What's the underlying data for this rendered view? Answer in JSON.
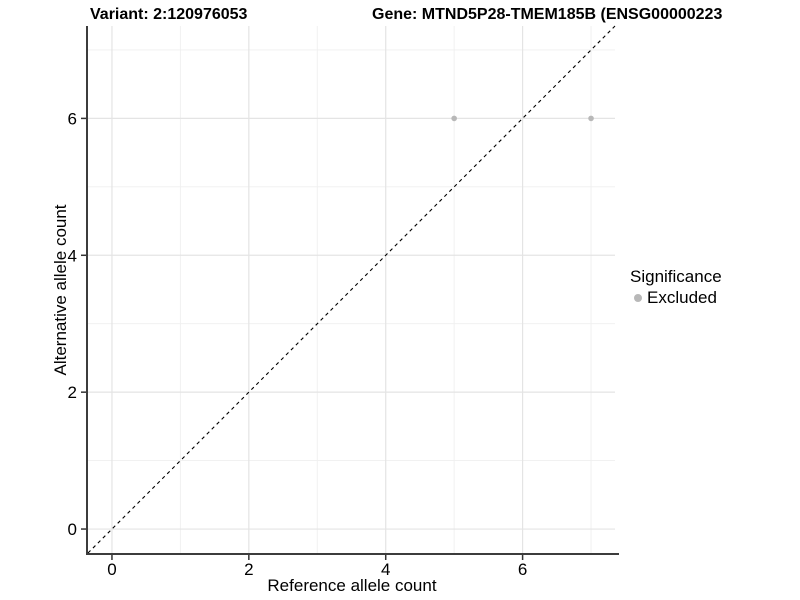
{
  "titles": {
    "variant": "Variant: 2:120976053",
    "gene": "Gene: MTND5P28-TMEM185B (ENSG00000223"
  },
  "chart_data": {
    "type": "scatter",
    "title_left": "Variant: 2:120976053",
    "title_right": "Gene: MTND5P28-TMEM185B (ENSG00000223",
    "xlabel": "Reference allele count",
    "ylabel": "Alternative allele count",
    "xlim": [
      -0.35,
      7.35
    ],
    "ylim": [
      -0.35,
      7.35
    ],
    "x_ticks": [
      0,
      2,
      4,
      6
    ],
    "y_ticks": [
      0,
      2,
      4,
      6
    ],
    "x_minor_ticks": [
      1,
      3,
      5,
      7
    ],
    "y_minor_ticks": [
      1,
      3,
      5,
      7
    ],
    "grid": true,
    "series": [
      {
        "name": "Excluded",
        "color": "#b8b8b8",
        "points": [
          {
            "x": 5,
            "y": 6
          },
          {
            "x": 7,
            "y": 6
          }
        ]
      }
    ],
    "identity_line": {
      "style": "dashed",
      "from": [
        -0.35,
        -0.35
      ],
      "to": [
        7.35,
        7.35
      ],
      "color": "#000000"
    },
    "legend": {
      "position": "right",
      "title": "Significance",
      "items": [
        {
          "label": "Excluded",
          "color": "#b8b8b8"
        }
      ]
    }
  },
  "colors": {
    "background": "#ffffff",
    "axis_line": "#3c3c3c",
    "tick_mark": "#333333",
    "grid_major": "#e4e4e4",
    "grid_minor": "#efefef",
    "text": "#000000",
    "point": "#b8b8b8"
  }
}
